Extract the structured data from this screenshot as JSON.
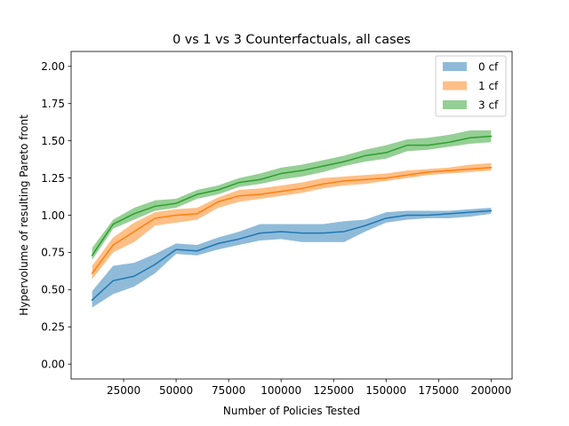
{
  "chart_data": {
    "type": "line",
    "title": "0 vs 1 vs 3 Counterfactuals, all cases",
    "xlabel": "Number of Policies Tested",
    "ylabel": "Hypervolume of resulting Pareto front",
    "xlim": [
      0,
      210000
    ],
    "ylim": [
      -0.1,
      2.1
    ],
    "x_ticks": [
      25000,
      50000,
      75000,
      100000,
      125000,
      150000,
      175000,
      200000
    ],
    "x_tick_labels": [
      "25000",
      "50000",
      "75000",
      "100000",
      "125000",
      "150000",
      "175000",
      "200000"
    ],
    "y_ticks": [
      0.0,
      0.25,
      0.5,
      0.75,
      1.0,
      1.25,
      1.5,
      1.75,
      2.0
    ],
    "y_tick_labels": [
      "0.00",
      "0.25",
      "0.50",
      "0.75",
      "1.00",
      "1.25",
      "1.50",
      "1.75",
      "2.00"
    ],
    "legend_position": "top-right",
    "grid": false,
    "x": [
      10000,
      20000,
      30000,
      40000,
      50000,
      60000,
      70000,
      80000,
      90000,
      100000,
      110000,
      120000,
      130000,
      140000,
      150000,
      160000,
      170000,
      180000,
      190000,
      200000
    ],
    "series": [
      {
        "name": "0 cf",
        "color": "#1f77b4",
        "values": [
          0.43,
          0.56,
          0.59,
          0.67,
          0.77,
          0.76,
          0.81,
          0.84,
          0.88,
          0.89,
          0.88,
          0.88,
          0.89,
          0.93,
          0.98,
          1.0,
          1.0,
          1.01,
          1.02,
          1.03
        ],
        "lower": [
          0.38,
          0.47,
          0.52,
          0.61,
          0.74,
          0.73,
          0.77,
          0.8,
          0.83,
          0.84,
          0.82,
          0.82,
          0.82,
          0.89,
          0.95,
          0.97,
          0.98,
          0.98,
          0.99,
          1.01
        ],
        "upper": [
          0.49,
          0.66,
          0.68,
          0.74,
          0.81,
          0.8,
          0.85,
          0.89,
          0.94,
          0.94,
          0.94,
          0.94,
          0.96,
          0.97,
          1.02,
          1.03,
          1.03,
          1.03,
          1.04,
          1.05
        ]
      },
      {
        "name": "1 cf",
        "color": "#ff7f0e",
        "values": [
          0.61,
          0.8,
          0.89,
          0.98,
          1.0,
          1.01,
          1.09,
          1.13,
          1.14,
          1.16,
          1.18,
          1.21,
          1.23,
          1.24,
          1.25,
          1.27,
          1.29,
          1.3,
          1.31,
          1.32
        ],
        "lower": [
          0.57,
          0.75,
          0.82,
          0.93,
          0.95,
          0.97,
          1.05,
          1.09,
          1.11,
          1.13,
          1.15,
          1.18,
          1.2,
          1.21,
          1.23,
          1.25,
          1.27,
          1.28,
          1.29,
          1.3
        ],
        "upper": [
          0.66,
          0.85,
          0.95,
          1.02,
          1.04,
          1.05,
          1.12,
          1.17,
          1.18,
          1.2,
          1.22,
          1.25,
          1.26,
          1.27,
          1.28,
          1.3,
          1.31,
          1.32,
          1.34,
          1.35
        ]
      },
      {
        "name": "3 cf",
        "color": "#2ca02c",
        "values": [
          0.73,
          0.94,
          1.01,
          1.06,
          1.08,
          1.14,
          1.17,
          1.22,
          1.24,
          1.28,
          1.3,
          1.33,
          1.36,
          1.4,
          1.42,
          1.47,
          1.47,
          1.49,
          1.52,
          1.53
        ],
        "lower": [
          0.7,
          0.91,
          0.97,
          1.03,
          1.05,
          1.11,
          1.14,
          1.19,
          1.21,
          1.24,
          1.26,
          1.29,
          1.33,
          1.36,
          1.38,
          1.43,
          1.44,
          1.46,
          1.48,
          1.49
        ],
        "upper": [
          0.78,
          0.97,
          1.05,
          1.1,
          1.11,
          1.17,
          1.2,
          1.25,
          1.28,
          1.32,
          1.34,
          1.37,
          1.4,
          1.44,
          1.47,
          1.51,
          1.52,
          1.54,
          1.57,
          1.57
        ]
      }
    ]
  }
}
